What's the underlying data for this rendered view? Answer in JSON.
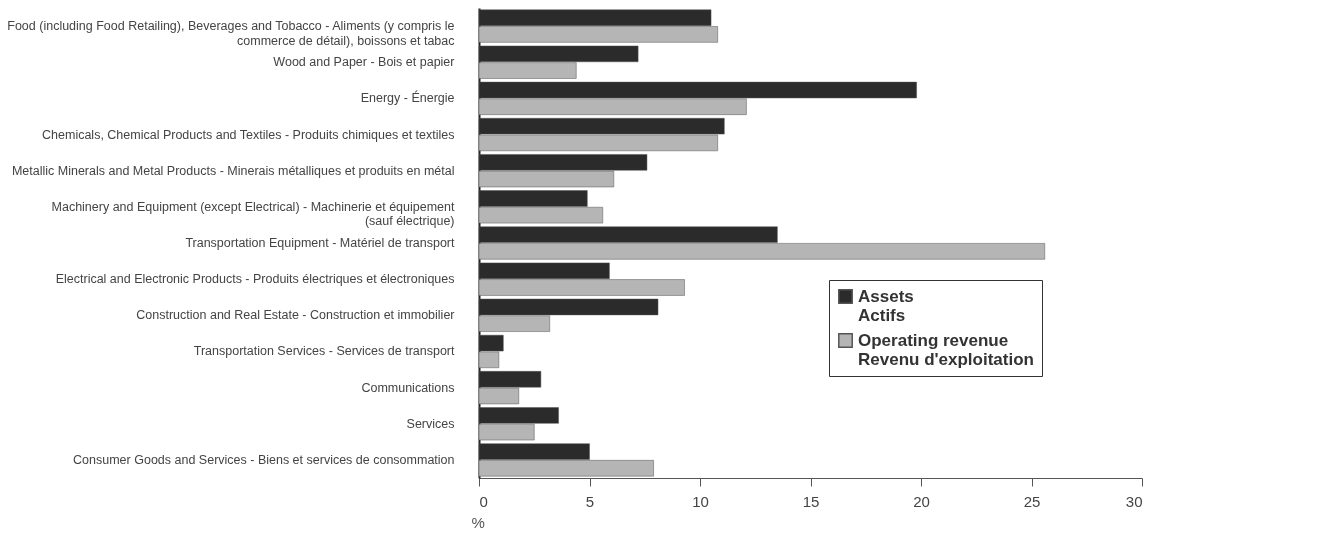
{
  "chart_data": {
    "type": "bar",
    "orientation": "horizontal",
    "xlabel": "%",
    "categories": [
      "Food (including Food Retailing), Beverages and Tobacco - Aliments (y compris le\ncommerce de détail), boissons et tabac",
      "Wood and Paper - Bois et papier",
      "Energy - Énergie",
      "Chemicals, Chemical Products and Textiles -  Produits chimiques et textiles",
      "Metallic Minerals and Metal Products -  Minerais métalliques et produits en métal",
      "Machinery and Equipment (except Electrical) -  Machinerie et équipement\n(sauf électrique)",
      "Transportation Equipment - Matériel de transport",
      "Electrical and Electronic Products - Produits électriques et électroniques",
      "Construction and Real Estate - Construction et immobilier",
      "Transportation Services - Services de transport",
      "Communications",
      "Services",
      "Consumer Goods and Services - Biens et services de consommation"
    ],
    "series": [
      {
        "name": "Assets\nActifs",
        "color": "#2b2b2b",
        "values": [
          10.5,
          7.2,
          19.8,
          11.1,
          7.6,
          4.9,
          13.5,
          5.9,
          8.1,
          1.1,
          2.8,
          3.6,
          5.0
        ]
      },
      {
        "name": "Operating revenue\nRevenu d'exploitation",
        "color": "#b5b5b5",
        "values": [
          10.8,
          4.4,
          12.1,
          10.8,
          6.1,
          5.6,
          25.6,
          9.3,
          3.2,
          0.9,
          1.8,
          2.5,
          7.9
        ]
      }
    ],
    "xlim": [
      0,
      30
    ],
    "xticks": [
      0,
      5,
      10,
      15,
      20,
      25,
      30
    ],
    "grid": false,
    "legend": "right"
  }
}
